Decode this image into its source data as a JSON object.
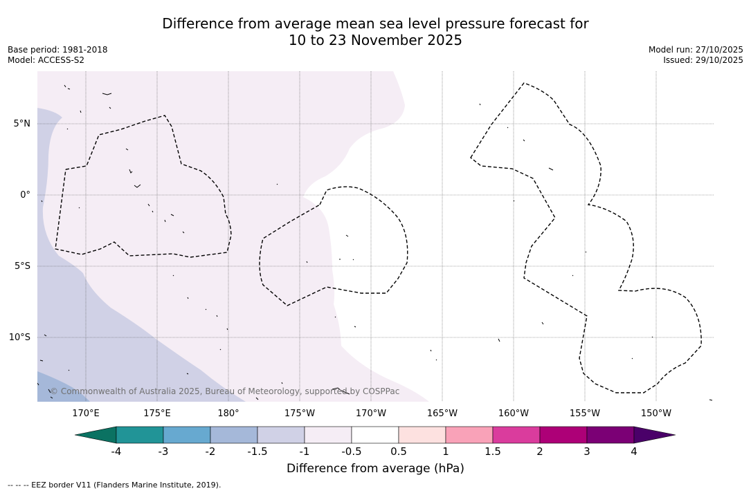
{
  "title": {
    "line1": "Difference from average mean sea level pressure forecast for",
    "line2": "10 to 23 November 2025"
  },
  "meta_left": {
    "base_period": "Base period: 1981-2018",
    "model": "Model: ACCESS-S2"
  },
  "meta_right": {
    "model_run": "Model run: 27/10/2025",
    "issued": "Issued: 29/10/2025"
  },
  "map": {
    "lat_labels": [
      "5°N",
      "0°",
      "5°S",
      "10°S"
    ],
    "lon_labels": [
      "170°E",
      "175°E",
      "180°",
      "175°W",
      "170°W",
      "165°W",
      "160°W",
      "155°W",
      "150°W"
    ],
    "copyright": "© Commonwealth of Australia 2025, Bureau of Meteorology, supported by COSPPac"
  },
  "colorbar": {
    "ticks": [
      "-4",
      "-3",
      "-2",
      "-1.5",
      "-1",
      "-0.5",
      "0.5",
      "1",
      "1.5",
      "2",
      "3",
      "4"
    ],
    "colors": [
      "#0b7262",
      "#219497",
      "#67a9d0",
      "#a5b8d9",
      "#d0d1e6",
      "#f5edf5",
      "#ffffff",
      "#fde1e0",
      "#f9a2b8",
      "#da3c9d",
      "#ad0077",
      "#7b0075",
      "#4a0069"
    ],
    "label": "Difference from average (hPa)"
  },
  "footnote": "--  --  -- EEZ border V11 (Flanders Marine Institute, 2019)."
}
